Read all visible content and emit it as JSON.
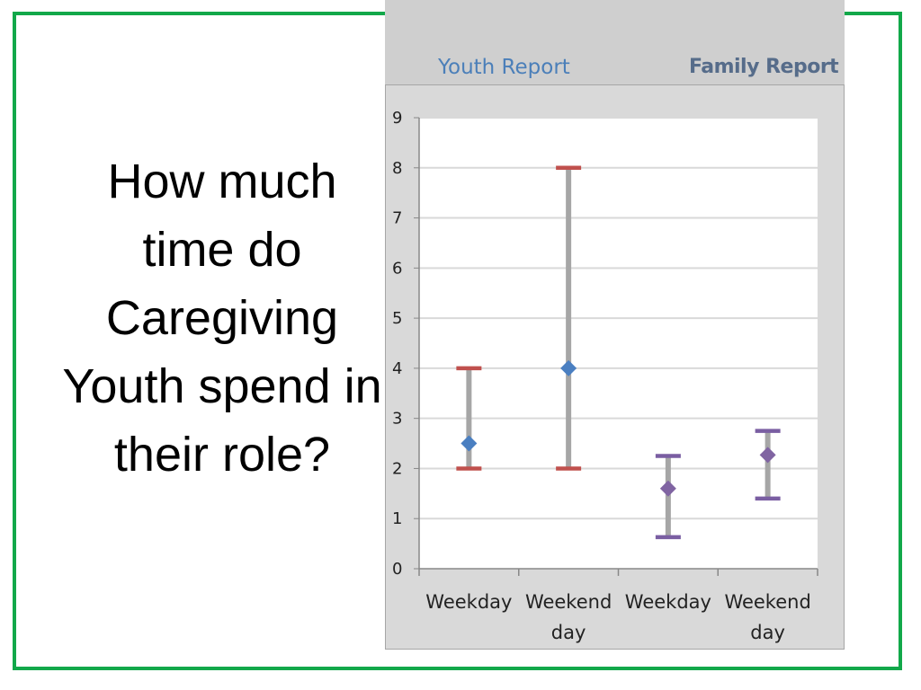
{
  "slide": {
    "title": "How much time do Caregiving Youth spend in their role?"
  },
  "headers": {
    "youth": "Youth Report",
    "family": "Family Report"
  },
  "chart_data": {
    "type": "scatter",
    "title": "",
    "xlabel": "",
    "ylabel": "",
    "ylim": [
      0,
      9
    ],
    "yticks": [
      "0",
      "1",
      "2",
      "3",
      "4",
      "5",
      "6",
      "7",
      "8",
      "9"
    ],
    "categories": [
      "Weekday",
      "Weekend day",
      "Weekday",
      "Weekend day"
    ],
    "category_lines": [
      [
        "Weekday"
      ],
      [
        "Weekend",
        "day"
      ],
      [
        "Weekday"
      ],
      [
        "Weekend",
        "day"
      ]
    ],
    "grid": true,
    "series": [
      {
        "group": "Youth Report",
        "points": [
          {
            "category": "Weekday",
            "value": 2.5,
            "low": 2,
            "high": 4
          },
          {
            "category": "Weekend day",
            "value": 4,
            "low": 2,
            "high": 8
          }
        ],
        "point_color": "#4a7fc1",
        "cap_color": "#c0504d"
      },
      {
        "group": "Family Report",
        "points": [
          {
            "category": "Weekday",
            "value": 1.6,
            "low": 0.63,
            "high": 2.25
          },
          {
            "category": "Weekend day",
            "value": 2.27,
            "low": 1.4,
            "high": 2.75
          }
        ],
        "point_color": "#8064a2",
        "cap_color": "#7a5ea2"
      }
    ],
    "whisker_color": "#a6a6a6",
    "gridline_color": "#d9d9d9"
  }
}
